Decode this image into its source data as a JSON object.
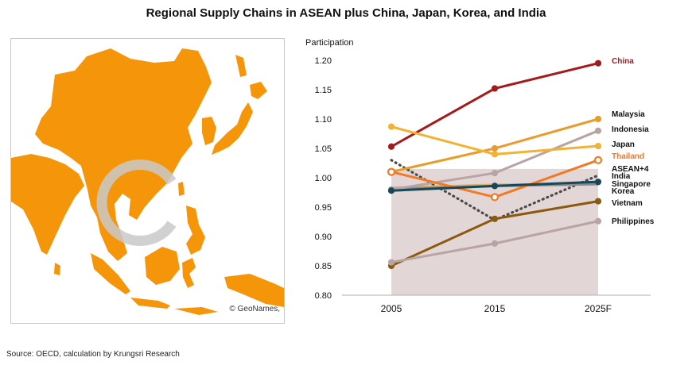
{
  "page": {
    "title": "Regional Supply Chains in ASEAN plus China, Japan, Korea, and India",
    "source": "Source: OECD, calculation by Krungsri Research"
  },
  "map": {
    "credit": "© GeoNames,",
    "land_color": "#f5960a",
    "watermark_color": "#c9c9c9"
  },
  "chart_data": {
    "type": "line",
    "ylabel": "Participation",
    "xlabel": "",
    "categories": [
      "2005",
      "2015",
      "2025F"
    ],
    "ylim": [
      0.8,
      1.2
    ],
    "yticks": [
      "0.80",
      "0.85",
      "0.90",
      "0.95",
      "1.00",
      "1.05",
      "1.10",
      "1.15",
      "1.20"
    ],
    "grid": false,
    "background_band": {
      "from": 0.8,
      "to": 1.015,
      "color": "#e3d6d6"
    },
    "series": [
      {
        "name": "China",
        "values": [
          1.053,
          1.152,
          1.195
        ],
        "color": "#a31b1b",
        "style": "solid",
        "marker": "filled",
        "label_color": "#a31b1b"
      },
      {
        "name": "Malaysia",
        "values": [
          1.01,
          1.05,
          1.1
        ],
        "color": "#e89c2c",
        "style": "solid",
        "marker": "filled",
        "label_color": "#111111"
      },
      {
        "name": "Indonesia",
        "values": [
          0.98,
          1.008,
          1.08
        ],
        "color": "#b8a4a4",
        "style": "solid",
        "marker": "filled",
        "label_color": "#111111"
      },
      {
        "name": "Japan",
        "values": [
          1.087,
          1.04,
          1.054
        ],
        "color": "#f2b233",
        "style": "solid",
        "marker": "filled",
        "label_color": "#111111"
      },
      {
        "name": "Thailand",
        "values": [
          1.01,
          0.967,
          1.03
        ],
        "color": "#f07a25",
        "style": "solid",
        "marker": "hollow",
        "label_color": "#f07a25"
      },
      {
        "name": "ASEAN+4",
        "values": [
          1.03,
          0.928,
          1.004
        ],
        "color": "#4a4a4a",
        "style": "dotted",
        "marker": "none",
        "label_color": "#111111"
      },
      {
        "name": "India",
        "values": [
          0.983,
          0.988,
          0.99
        ],
        "color": "#d9b36a",
        "style": "solid",
        "marker": "none",
        "label_color": "#111111"
      },
      {
        "name": "Singapore",
        "values": [
          0.978,
          0.986,
          0.993
        ],
        "color": "#17485a",
        "style": "solid",
        "marker": "filled",
        "label_color": "#111111"
      },
      {
        "name": "Korea",
        "values": [
          0.981,
          0.986,
          0.989
        ],
        "color": "#8a8a8a",
        "style": "solid",
        "marker": "none",
        "label_color": "#111111"
      },
      {
        "name": "Vietnam",
        "values": [
          0.85,
          0.93,
          0.96
        ],
        "color": "#8c5a0f",
        "style": "solid",
        "marker": "filled",
        "label_color": "#111111"
      },
      {
        "name": "Philippines",
        "values": [
          0.856,
          0.888,
          0.926
        ],
        "color": "#b8a4a4",
        "style": "solid",
        "marker": "filled",
        "label_color": "#111111"
      }
    ]
  }
}
